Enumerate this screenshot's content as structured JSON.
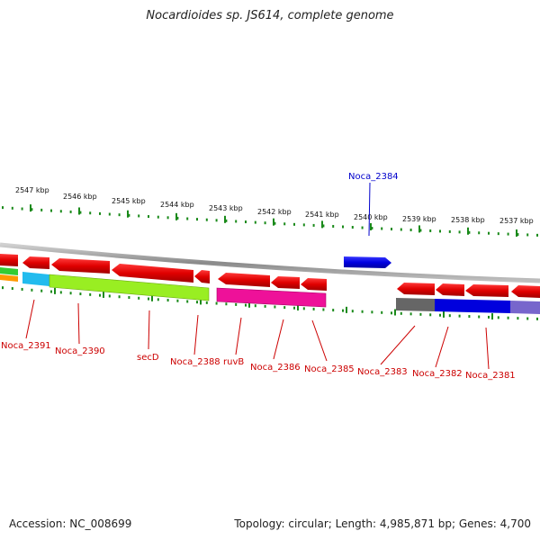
{
  "title": "Nocardioides sp. JS614, complete genome",
  "accession": "Accession: NC_008699",
  "topology": "Topology: circular; Length: 4,985,871 bp; Genes: 4,700",
  "scale_labels": [
    "2547 kbp",
    "2546 kbp",
    "2545 kbp",
    "2544 kbp",
    "2543 kbp",
    "2542 kbp",
    "2541 kbp",
    "2540 kbp",
    "2539 kbp",
    "2538 kbp",
    "2537 kbp"
  ],
  "gene_labels": [
    "Noca_2384",
    "Noca_2391",
    "Noca_2390",
    "secD",
    "Noca_2388",
    "ruvB",
    "Noca_2386",
    "Noca_2385",
    "Noca_2383",
    "Noca_2382",
    "Noca_2381"
  ],
  "colors": {
    "forward_gene": "#0000e0",
    "reverse_gene": "#ee0000",
    "scale_ticks": "#1a8a1a",
    "backbone": "#909090",
    "cog_green": "#33cc33",
    "cog_orange": "#ff9900",
    "cog_cyan": "#22bbee",
    "cog_lime": "#99ee22",
    "cog_magenta": "#ee1199",
    "cog_gray": "#666666",
    "cog_blue": "#0000dd",
    "cog_purple": "#7766cc"
  }
}
